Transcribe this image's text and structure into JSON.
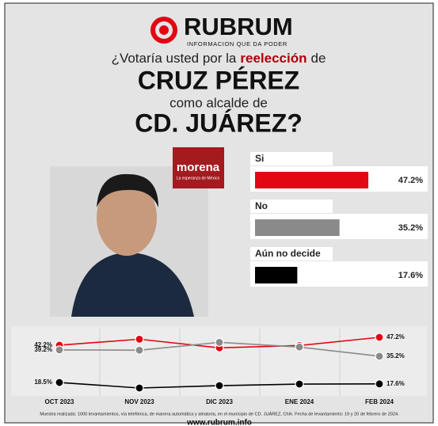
{
  "header": {
    "brand": "RUBRUM",
    "tagline": "INFORMACION QUE DA PODER",
    "question": {
      "before": "¿Votaría usted por la",
      "bold": "reelección",
      "after": "de"
    },
    "name": "CRUZ PÉREZ",
    "subtitle": "como alcalde de",
    "city": "CD. JUÁREZ?"
  },
  "party": {
    "name": "morena",
    "motto": "La esperanza de México"
  },
  "chart_data": [
    {
      "type": "bar",
      "categories": [
        "Si",
        "No",
        "Aún no decide"
      ],
      "values": [
        47.2,
        35.2,
        17.6
      ],
      "value_labels": [
        "47.2%",
        "35.2%",
        "17.6%"
      ],
      "colors": [
        "#e30613",
        "#8a8a8a",
        "#000000"
      ]
    },
    {
      "type": "line",
      "categories": [
        "OCT 2023",
        "NOV 2023",
        "DIC 2023",
        "ENE 2024",
        "FEB 2024"
      ],
      "series": [
        {
          "color": "#e30613",
          "values": [
            42.2,
            46,
            40.5,
            42,
            47.2
          ],
          "value_labels": [
            "42.2%",
            null,
            null,
            null,
            "47.2%"
          ]
        },
        {
          "color": "#8a8a8a",
          "values": [
            39.2,
            39,
            44,
            41,
            35.2
          ],
          "value_labels": [
            "39.2%",
            null,
            null,
            null,
            "35.2%"
          ]
        },
        {
          "color": "#000000",
          "values": [
            18.5,
            15,
            16.5,
            17.5,
            17.6
          ],
          "value_labels": [
            "18.5%",
            null,
            null,
            null,
            "17.6%"
          ]
        }
      ]
    }
  ],
  "footer": {
    "note": "Muestra realizada: 1000 levantamientos, vía telefónica, de manera automática y aleatoria, en el municipio de CD. JUÁREZ, Chih. Fecha de levantamiento: 19 y 20 de febrero de 2024.",
    "url": "www.rubrum.info"
  }
}
